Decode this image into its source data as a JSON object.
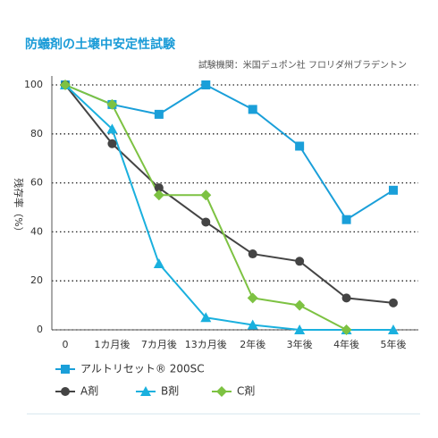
{
  "chart_data": {
    "type": "line",
    "title": "防蟻剤の土壌中安定性試験",
    "subtitle": "試験機関：米国デュポン社 フロリダ州ブラデントン",
    "y_label": "残存率（%）",
    "categories": [
      "0",
      "1カ月後",
      "7カ月後",
      "13カ月後",
      "2年後",
      "3年後",
      "4年後",
      "5年後"
    ],
    "series": [
      {
        "name": "アルトリセット® 200SC",
        "color": "#1a9fd9",
        "marker": "square",
        "values": [
          100,
          92,
          88,
          100,
          90,
          75,
          45,
          57
        ]
      },
      {
        "name": "A剤",
        "color": "#444444",
        "marker": "circle",
        "values": [
          100,
          76,
          58,
          44,
          31,
          28,
          13,
          11
        ]
      },
      {
        "name": "B剤",
        "color": "#1ab0de",
        "marker": "triangle",
        "values": [
          100,
          82,
          27,
          5,
          2,
          0,
          0,
          0
        ]
      },
      {
        "name": "C剤",
        "color": "#7dc242",
        "marker": "diamond",
        "values": [
          100,
          92,
          55,
          55,
          13,
          10,
          0,
          null
        ]
      }
    ],
    "ylim": [
      0,
      100
    ],
    "yticks": [
      0,
      20,
      40,
      60,
      80,
      100
    ],
    "grid": true
  }
}
